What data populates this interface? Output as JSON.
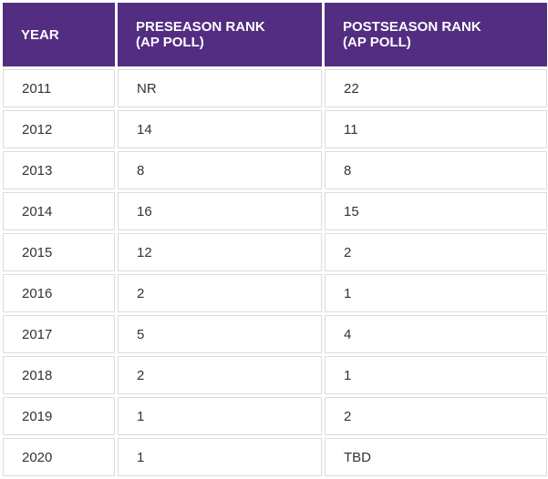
{
  "table": {
    "headers": {
      "year": "YEAR",
      "preseason_line1": "PRESEASON RANK",
      "preseason_line2": "(AP POLL)",
      "postseason_line1": "POSTSEASON RANK",
      "postseason_line2": "(AP POLL)"
    },
    "rows": [
      {
        "year": "2011",
        "preseason": "NR",
        "postseason": "22"
      },
      {
        "year": "2012",
        "preseason": "14",
        "postseason": "11"
      },
      {
        "year": "2013",
        "preseason": "8",
        "postseason": "8"
      },
      {
        "year": "2014",
        "preseason": "16",
        "postseason": "15"
      },
      {
        "year": "2015",
        "preseason": "12",
        "postseason": "2"
      },
      {
        "year": "2016",
        "preseason": "2",
        "postseason": "1"
      },
      {
        "year": "2017",
        "preseason": "5",
        "postseason": "4"
      },
      {
        "year": "2018",
        "preseason": "2",
        "postseason": "1"
      },
      {
        "year": "2019",
        "preseason": "1",
        "postseason": "2"
      },
      {
        "year": "2020",
        "preseason": "1",
        "postseason": "TBD"
      }
    ]
  },
  "colors": {
    "header_background": "#532d82",
    "header_text": "#ffffff",
    "cell_border": "#dcdcdc",
    "cell_text": "#333333"
  }
}
